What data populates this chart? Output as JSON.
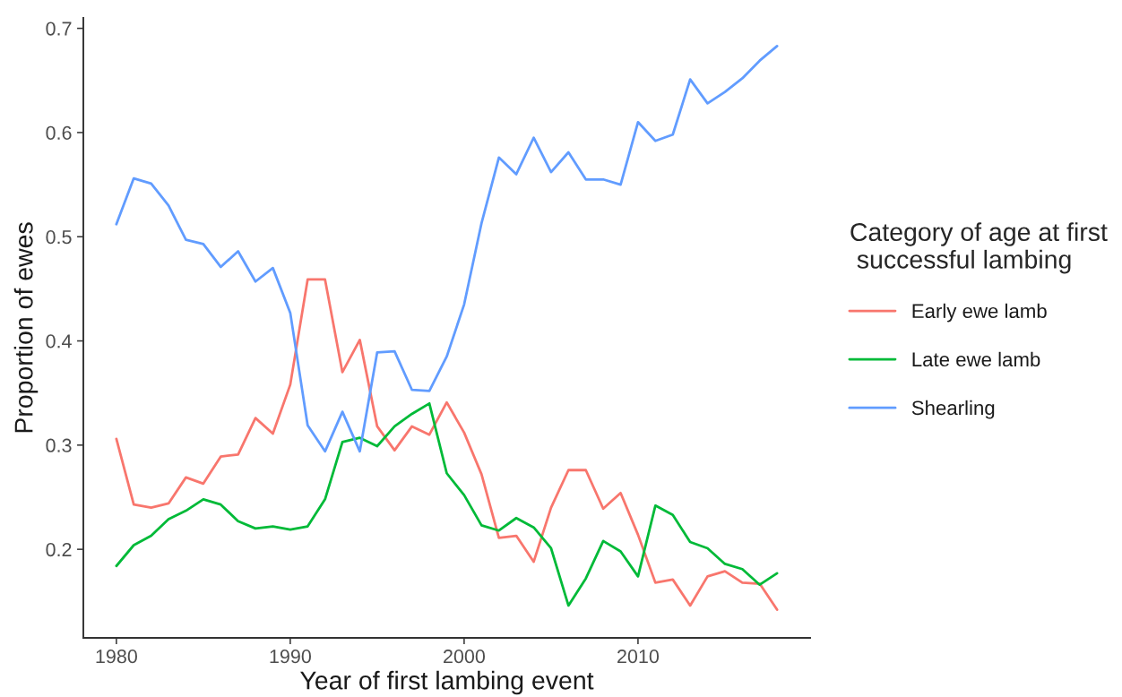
{
  "chart_data": {
    "type": "line",
    "xlabel": "Year of first lambing event",
    "ylabel": "Proportion of ewes",
    "legend_title": "Category of age at first\n successful lambing",
    "x": [
      1980,
      1981,
      1982,
      1983,
      1984,
      1985,
      1986,
      1987,
      1988,
      1989,
      1990,
      1991,
      1992,
      1993,
      1994,
      1995,
      1996,
      1997,
      1998,
      1999,
      2000,
      2001,
      2002,
      2003,
      2004,
      2005,
      2006,
      2007,
      2008,
      2009,
      2010,
      2011,
      2012,
      2013,
      2014,
      2015,
      2016,
      2017,
      2018
    ],
    "series": [
      {
        "name": "Early ewe lamb",
        "color": "#f8766d",
        "values": [
          0.306,
          0.243,
          0.24,
          0.244,
          0.269,
          0.263,
          0.289,
          0.291,
          0.326,
          0.311,
          0.358,
          0.459,
          0.459,
          0.37,
          0.401,
          0.318,
          0.295,
          0.318,
          0.31,
          0.341,
          0.312,
          0.272,
          0.211,
          0.213,
          0.188,
          0.24,
          0.276,
          0.276,
          0.239,
          0.254,
          0.214,
          0.168,
          0.171,
          0.146,
          0.174,
          0.179,
          0.168,
          0.167,
          0.142
        ]
      },
      {
        "name": "Late ewe lamb",
        "color": "#00ba38",
        "values": [
          0.184,
          0.204,
          0.213,
          0.229,
          0.237,
          0.248,
          0.243,
          0.227,
          0.22,
          0.222,
          0.219,
          0.222,
          0.248,
          0.303,
          0.307,
          0.299,
          0.318,
          0.33,
          0.34,
          0.273,
          0.252,
          0.223,
          0.218,
          0.23,
          0.221,
          0.201,
          0.146,
          0.172,
          0.208,
          0.198,
          0.174,
          0.242,
          0.233,
          0.207,
          0.201,
          0.186,
          0.181,
          0.166,
          0.177
        ]
      },
      {
        "name": "Shearling",
        "color": "#619cff",
        "values": [
          0.512,
          0.556,
          0.551,
          0.53,
          0.497,
          0.493,
          0.471,
          0.486,
          0.457,
          0.47,
          0.427,
          0.319,
          0.294,
          0.332,
          0.294,
          0.389,
          0.39,
          0.353,
          0.352,
          0.385,
          0.435,
          0.513,
          0.576,
          0.56,
          0.595,
          0.562,
          0.581,
          0.555,
          0.555,
          0.55,
          0.61,
          0.592,
          0.598,
          0.651,
          0.628,
          0.639,
          0.652,
          0.669,
          0.683
        ]
      }
    ],
    "xlim": [
      1978.1,
      2019.9
    ],
    "ylim": [
      0.115,
      0.71
    ],
    "xticks": [
      1980,
      1990,
      2000,
      2010
    ],
    "yticks": [
      0.2,
      0.3,
      0.4,
      0.5,
      0.6,
      0.7
    ],
    "grid": false,
    "legend": "right",
    "marker": "none",
    "line_style": "solid"
  }
}
